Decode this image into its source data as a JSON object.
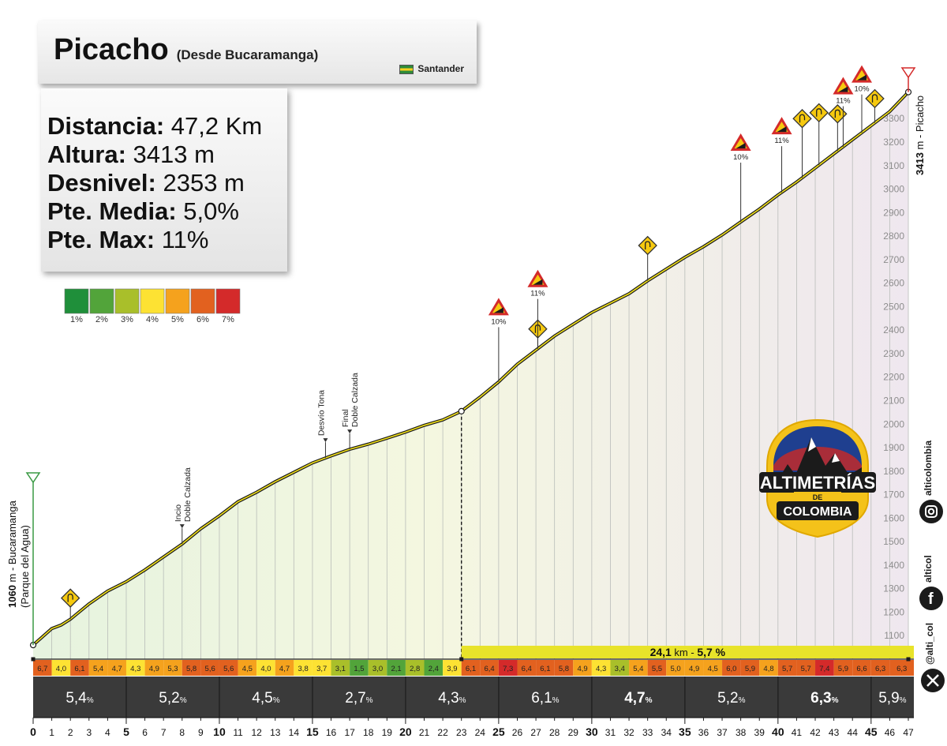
{
  "header": {
    "title": "Picacho",
    "subtitle": "(Desde Bucaramanga)",
    "region": "Santander"
  },
  "stats": {
    "distance_label": "Distancia:",
    "distance_value": "47,2 Km",
    "altitude_label": "Altura:",
    "altitude_value": "3413 m",
    "gain_label": "Desnivel:",
    "gain_value": "2353 m",
    "avg_label": "Pte. Media:",
    "avg_value": "5,0%",
    "max_label": "Pte. Max:",
    "max_value": "11%"
  },
  "legend": {
    "labels": [
      "1%",
      "2%",
      "3%",
      "4%",
      "5%",
      "6%",
      "7%"
    ],
    "colors": [
      "#1f8f3a",
      "#52a43a",
      "#a9bf2a",
      "#fde233",
      "#f5a21d",
      "#e2611f",
      "#d42a2a"
    ]
  },
  "branding": {
    "logo_line1": "ALTIMETRÍAS",
    "logo_line2": "DE",
    "logo_line3": "COLOMBIA",
    "instagram": "alticolombia",
    "facebook": "alticol",
    "twitter": "@alti_col"
  },
  "chart_data": {
    "type": "area",
    "x_label_unit": "km",
    "xlim": [
      0,
      47
    ],
    "ylim": [
      1000,
      3420
    ],
    "y_ticks": [
      1100,
      1200,
      1300,
      1400,
      1500,
      1600,
      1700,
      1800,
      1900,
      2000,
      2100,
      2200,
      2300,
      2400,
      2500,
      2600,
      2700,
      2800,
      2900,
      3000,
      3100,
      3200,
      3300
    ],
    "x_ticks": [
      0,
      1,
      2,
      3,
      4,
      5,
      6,
      7,
      8,
      9,
      10,
      11,
      12,
      13,
      14,
      15,
      16,
      17,
      18,
      19,
      20,
      21,
      22,
      23,
      24,
      25,
      26,
      27,
      28,
      29,
      30,
      31,
      32,
      33,
      34,
      35,
      36,
      37,
      38,
      39,
      40,
      41,
      42,
      43,
      44,
      45,
      46,
      47
    ],
    "x_major_ticks": [
      0,
      5,
      10,
      15,
      20,
      25,
      30,
      35,
      40,
      45
    ],
    "profile": [
      [
        0,
        1060
      ],
      [
        1,
        1130
      ],
      [
        1.5,
        1145
      ],
      [
        2,
        1170
      ],
      [
        3,
        1235
      ],
      [
        4,
        1290
      ],
      [
        5,
        1330
      ],
      [
        6,
        1380
      ],
      [
        7,
        1435
      ],
      [
        8,
        1490
      ],
      [
        9,
        1555
      ],
      [
        10,
        1610
      ],
      [
        11,
        1670
      ],
      [
        12,
        1710
      ],
      [
        13,
        1755
      ],
      [
        14,
        1795
      ],
      [
        15,
        1835
      ],
      [
        16,
        1865
      ],
      [
        17,
        1893
      ],
      [
        18,
        1915
      ],
      [
        19,
        1940
      ],
      [
        20,
        1966
      ],
      [
        21,
        1995
      ],
      [
        22,
        2018
      ],
      [
        23,
        2055
      ],
      [
        24,
        2115
      ],
      [
        25,
        2180
      ],
      [
        26,
        2255
      ],
      [
        27,
        2315
      ],
      [
        28,
        2375
      ],
      [
        29,
        2425
      ],
      [
        30,
        2475
      ],
      [
        31,
        2515
      ],
      [
        32,
        2555
      ],
      [
        33,
        2610
      ],
      [
        34,
        2660
      ],
      [
        35,
        2710
      ],
      [
        36,
        2755
      ],
      [
        37,
        2805
      ],
      [
        38,
        2860
      ],
      [
        39,
        2915
      ],
      [
        40,
        2975
      ],
      [
        41,
        3030
      ],
      [
        42,
        3090
      ],
      [
        43,
        3150
      ],
      [
        44,
        3210
      ],
      [
        45,
        3270
      ],
      [
        46,
        3330
      ],
      [
        47,
        3413
      ]
    ],
    "start_label": "1060 m - Bucaramanga",
    "start_sublabel": "(Parque del Agua)",
    "end_label_value": "3413",
    "end_label_text": "m - Picacho",
    "markers": [
      {
        "km": 8,
        "line1": "Incio",
        "line2": "Doble Calzada"
      },
      {
        "km": 15.7,
        "line1": "Desvío Tona",
        "line2": ""
      },
      {
        "km": 17,
        "line1": "Final",
        "line2": "Doble Calzada"
      }
    ],
    "slope_signs": [
      {
        "km": 25,
        "label": "10%",
        "top": 2500
      },
      {
        "km": 27.1,
        "label": "11%",
        "top": 2620
      },
      {
        "km": 38,
        "label": "10%",
        "top": 3200
      },
      {
        "km": 40.2,
        "label": "11%",
        "top": 3270
      },
      {
        "km": 43.5,
        "label": "11%",
        "top": 3440
      },
      {
        "km": 44.5,
        "label": "10%",
        "top": 3490
      }
    ],
    "curve_signs": [
      {
        "km": 2,
        "top": 1260
      },
      {
        "km": 27.1,
        "top": 2405
      },
      {
        "km": 33,
        "top": 2760
      },
      {
        "km": 41.3,
        "top": 3300
      },
      {
        "km": 42.2,
        "top": 3325
      },
      {
        "km": 43.2,
        "top": 3320
      },
      {
        "km": 45.2,
        "top": 3385
      }
    ],
    "climb_segment": {
      "from_km": 23,
      "to_km": 47,
      "distance": "24,1",
      "unit": "km",
      "separator": " - ",
      "slope": "5,7 %"
    },
    "km_gradients": [
      "6,7",
      "4,0",
      "6,1",
      "5,4",
      "4,7",
      "4,3",
      "4,9",
      "5,3",
      "5,8",
      "5,6",
      "5,6",
      "4,5",
      "4,0",
      "4,7",
      "3,8",
      "3,7",
      "3,1",
      "1,5",
      "3,0",
      "2,1",
      "2,8",
      "2,4",
      "3,9",
      "6,1",
      "6,4",
      "7,3",
      "6,4",
      "6,1",
      "5,8",
      "4,9",
      "4,3",
      "3,4",
      "5,4",
      "5,5",
      "5,0",
      "4,9",
      "4,5",
      "6,0",
      "5,9",
      "4,8",
      "5,7",
      "5,7",
      "7,4",
      "5,9",
      "6,6",
      "6,3",
      "6,3"
    ],
    "block_gradients": [
      {
        "value": "5,4",
        "unit": "%"
      },
      {
        "value": "5,2",
        "unit": "%"
      },
      {
        "value": "4,5",
        "unit": "%"
      },
      {
        "value": "2,7",
        "unit": "%"
      },
      {
        "value": "4,3",
        "unit": "%"
      },
      {
        "value": "6,1",
        "unit": "%"
      },
      {
        "value": "4,7",
        "unit": "%"
      },
      {
        "value": "5,2",
        "unit": "%"
      },
      {
        "value": "6,3",
        "unit": "%"
      },
      {
        "value": "5,9",
        "unit": "%"
      }
    ]
  }
}
